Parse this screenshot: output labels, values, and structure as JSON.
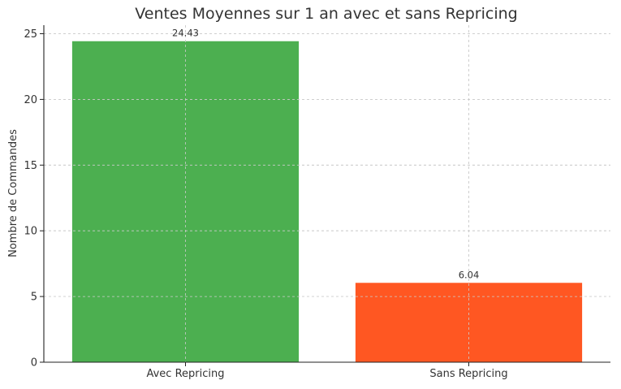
{
  "chart_data": {
    "type": "bar",
    "title": "Ventes Moyennes sur 1 an avec et sans Repricing",
    "xlabel": "",
    "ylabel": "Nombre de Commandes",
    "categories": [
      "Avec Repricing",
      "Sans Repricing"
    ],
    "values": [
      24.43,
      6.04
    ],
    "value_labels": [
      "24.43",
      "6.04"
    ],
    "colors": [
      "#4caf50",
      "#ff5722"
    ],
    "ylim": [
      0,
      25.65
    ],
    "yticks": [
      0,
      5,
      10,
      15,
      20,
      25
    ],
    "ytick_labels": [
      "0",
      "5",
      "10",
      "15",
      "20",
      "25"
    ],
    "grid": true
  }
}
